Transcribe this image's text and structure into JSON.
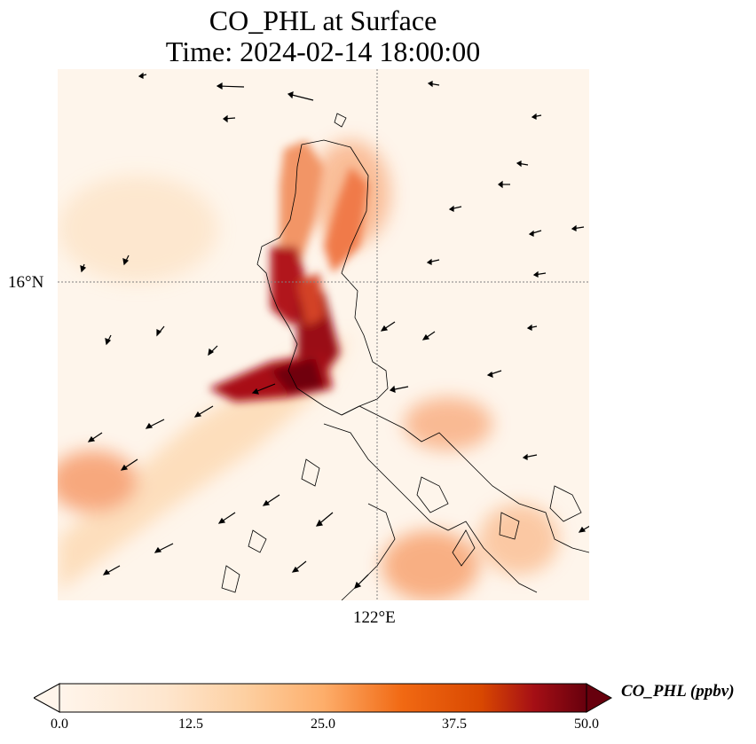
{
  "chart_data": {
    "type": "heatmap",
    "title_line1": "CO_PHL at Surface",
    "title_line2": "Time: 2024-02-14 18:00:00",
    "x_tick_label": "122°E",
    "y_tick_label": "16°N",
    "colorbar": {
      "label": "CO_PHL (ppbv)",
      "ticks": [
        "0.0",
        "12.5",
        "25.0",
        "37.5",
        "50.0"
      ],
      "tick_values": [
        0,
        12.5,
        25.0,
        37.5,
        50.0
      ],
      "range": [
        0,
        50
      ],
      "colormap": [
        "#fff5eb",
        "#fdd0a2",
        "#fdae6b",
        "#f16913",
        "#d94801",
        "#a50f15",
        "#67000d"
      ],
      "extend": "both"
    },
    "hotspots": [
      {
        "description": "high concentration plume",
        "value": 50
      }
    ],
    "wind_vectors": "shown"
  },
  "colors": {
    "background": "#fef5eb",
    "coast": "#000000",
    "grid": "#808080"
  }
}
